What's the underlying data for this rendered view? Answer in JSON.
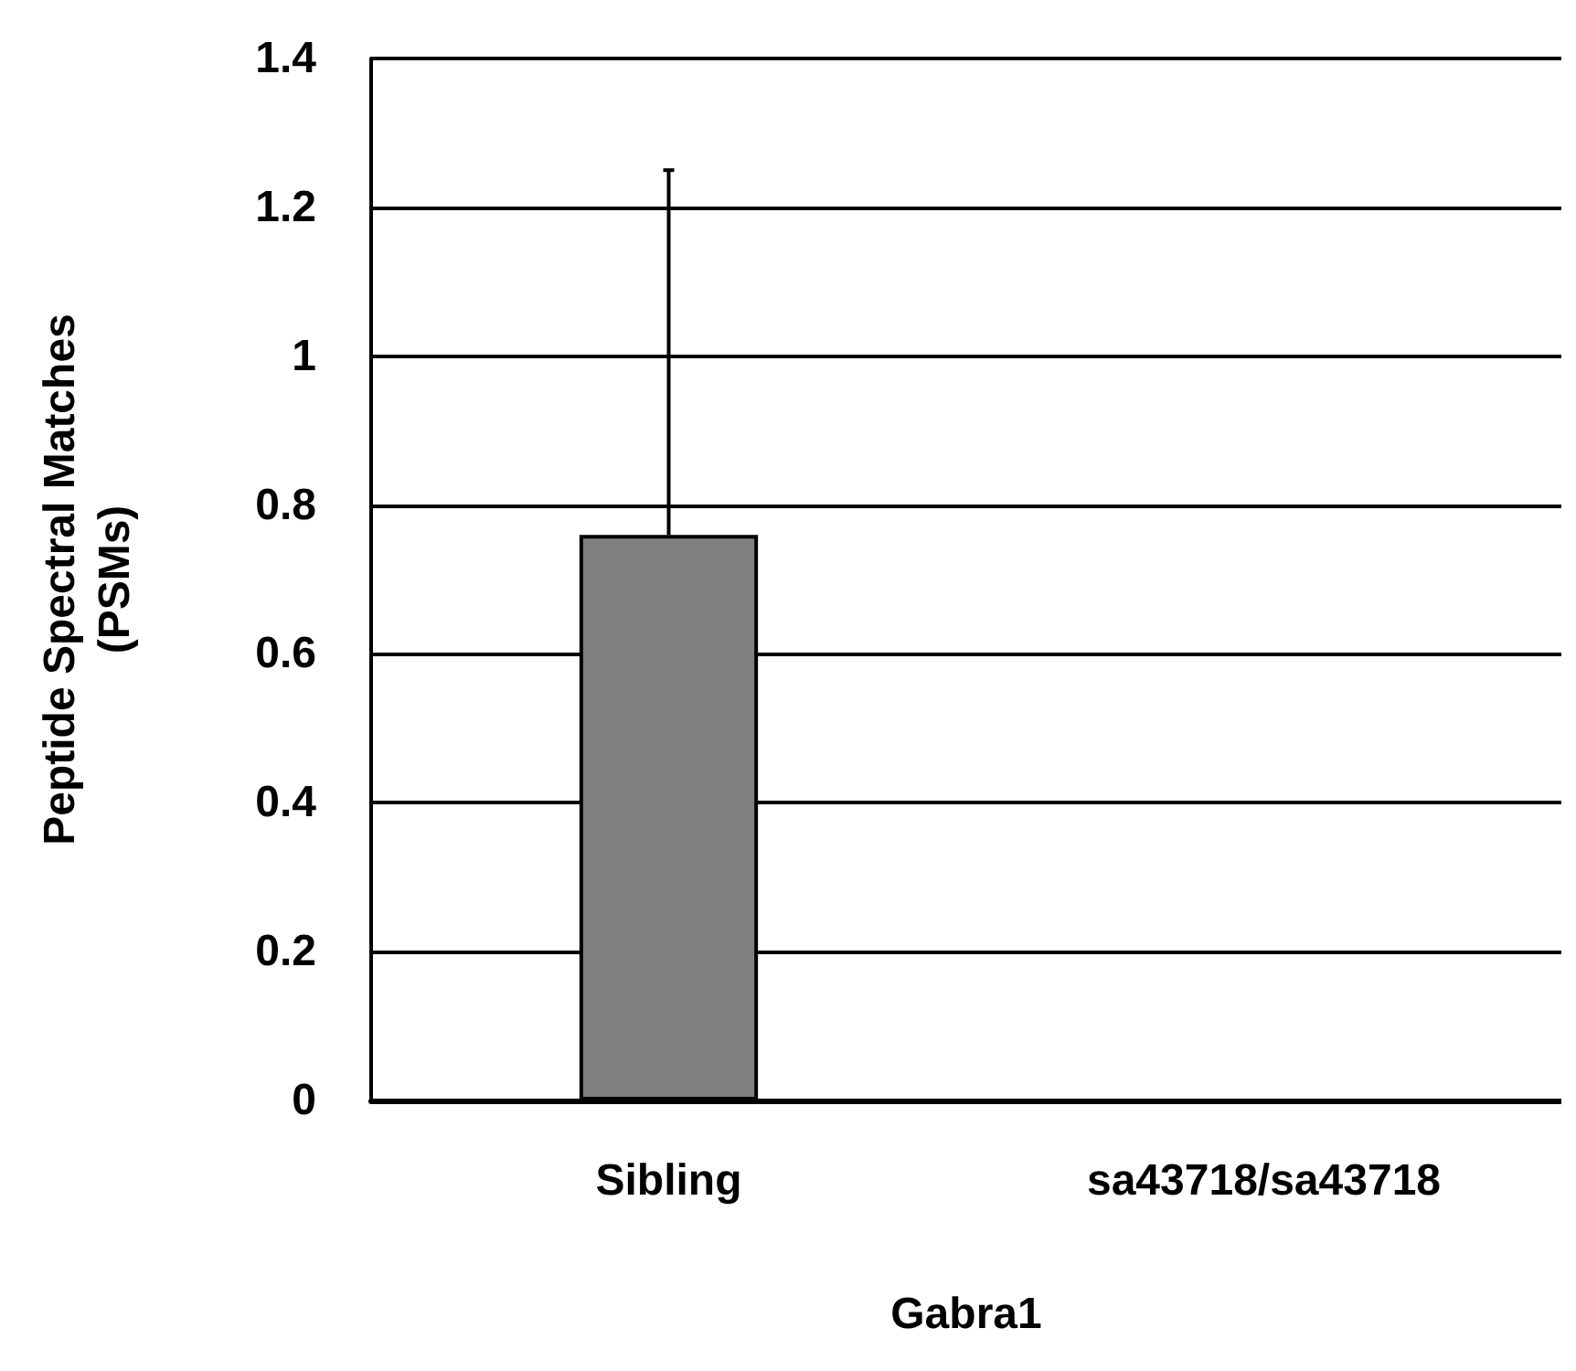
{
  "chart_data": {
    "type": "bar",
    "xlabel": "Gabra1",
    "ylabel": "Peptide Spectral Matches\n(PSMs)",
    "categories": [
      "Sibling",
      "sa43718/sa43718"
    ],
    "values": [
      0.76,
      0
    ],
    "errors": [
      [
        0.76,
        1.25
      ],
      null
    ],
    "color": "#808080",
    "ylim": [
      0,
      1.4
    ],
    "yticks": [
      0,
      0.2,
      0.4,
      0.6,
      0.8,
      1,
      1.2,
      1.4
    ],
    "grid": "y"
  }
}
